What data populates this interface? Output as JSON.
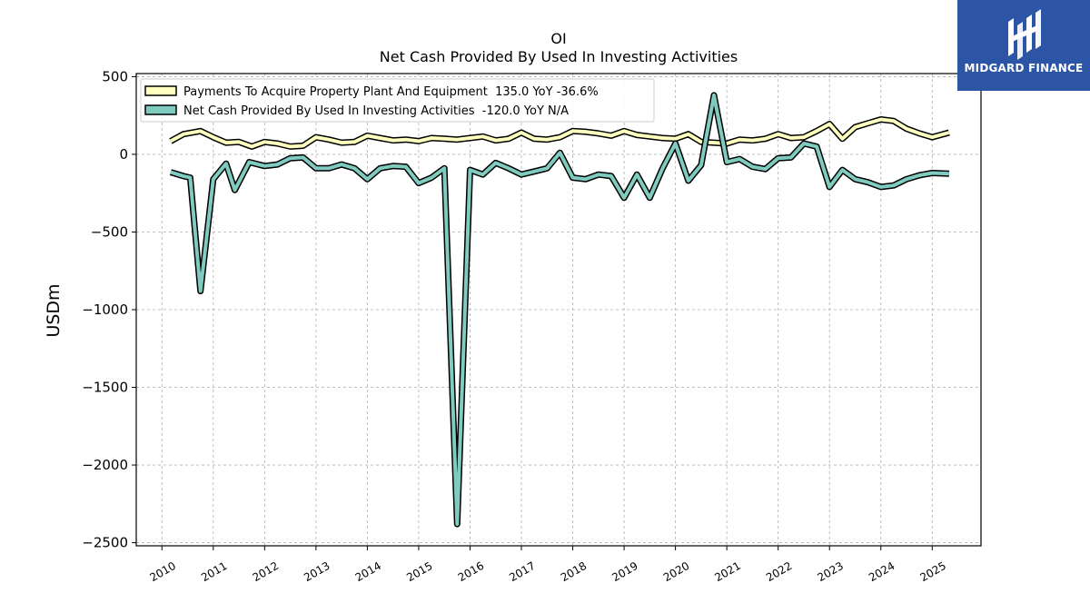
{
  "logo": {
    "text": "MIDGARD FINANCE"
  },
  "chart_data": {
    "type": "line",
    "title": "OI",
    "subtitle": "Net Cash Provided By Used In Investing Activities",
    "xlabel": "",
    "ylabel": "USDm",
    "ylim": [
      -2520,
      520
    ],
    "xlim": [
      2009.5,
      2025.95
    ],
    "yticks": [
      500,
      0,
      -500,
      -1000,
      -1500,
      -2000,
      -2500
    ],
    "ytick_labels": [
      "500",
      "0",
      "−500",
      "−1000",
      "−1500",
      "−2000",
      "−2500"
    ],
    "xticks": [
      2010,
      2011,
      2012,
      2013,
      2014,
      2015,
      2016,
      2017,
      2018,
      2019,
      2020,
      2021,
      2022,
      2023,
      2024,
      2025
    ],
    "xtick_labels": [
      "2010",
      "2011",
      "2012",
      "2013",
      "2014",
      "2015",
      "2016",
      "2017",
      "2018",
      "2019",
      "2020",
      "2021",
      "2022",
      "2023",
      "2024",
      "2025"
    ],
    "grid": true,
    "legend_position": "top-left",
    "series": [
      {
        "name": "Payments To Acquire Property Plant And Equipment",
        "legend": "Payments To Acquire Property Plant And Equipment  135.0 YoY -36.6%",
        "color": "#ffffbf",
        "x": [
          2010.17,
          2010.42,
          2010.75,
          2011.0,
          2011.25,
          2011.5,
          2011.75,
          2012.0,
          2012.25,
          2012.5,
          2012.75,
          2013.0,
          2013.25,
          2013.5,
          2013.75,
          2014.0,
          2014.25,
          2014.5,
          2014.75,
          2015.0,
          2015.25,
          2015.5,
          2015.75,
          2016.0,
          2016.25,
          2016.5,
          2016.75,
          2017.0,
          2017.25,
          2017.5,
          2017.75,
          2018.0,
          2018.25,
          2018.5,
          2018.75,
          2019.0,
          2019.25,
          2019.5,
          2019.75,
          2020.0,
          2020.25,
          2020.5,
          2020.75,
          2021.0,
          2021.25,
          2021.5,
          2021.75,
          2022.0,
          2022.25,
          2022.5,
          2022.75,
          2023.0,
          2023.25,
          2023.5,
          2023.75,
          2024.0,
          2024.25,
          2024.5,
          2024.75,
          2025.0,
          2025.33
        ],
        "y": [
          85,
          130,
          150,
          110,
          75,
          80,
          50,
          80,
          70,
          50,
          55,
          110,
          95,
          75,
          80,
          120,
          105,
          90,
          95,
          85,
          105,
          100,
          95,
          105,
          115,
          90,
          100,
          140,
          100,
          95,
          110,
          150,
          145,
          135,
          120,
          150,
          125,
          115,
          105,
          100,
          130,
          80,
          75,
          70,
          95,
          90,
          100,
          130,
          105,
          110,
          150,
          195,
          100,
          175,
          200,
          225,
          215,
          165,
          135,
          110,
          140
        ]
      },
      {
        "name": "Net Cash Provided By Used In Investing Activities",
        "legend": "Net Cash Provided By Used In Investing Activities  -120.0 YoY N/A",
        "color": "#80cbc0",
        "x": [
          2010.17,
          2010.42,
          2010.55,
          2010.75,
          2011.0,
          2011.25,
          2011.42,
          2011.7,
          2012.0,
          2012.25,
          2012.5,
          2012.75,
          2013.0,
          2013.25,
          2013.5,
          2013.75,
          2014.0,
          2014.25,
          2014.5,
          2014.75,
          2015.0,
          2015.25,
          2015.5,
          2015.75,
          2016.0,
          2016.25,
          2016.5,
          2016.75,
          2017.0,
          2017.25,
          2017.5,
          2017.75,
          2018.0,
          2018.25,
          2018.5,
          2018.75,
          2019.0,
          2019.25,
          2019.5,
          2019.75,
          2020.0,
          2020.25,
          2020.5,
          2020.75,
          2021.0,
          2021.25,
          2021.5,
          2021.75,
          2022.0,
          2022.25,
          2022.5,
          2022.75,
          2023.0,
          2023.25,
          2023.5,
          2023.75,
          2024.0,
          2024.25,
          2024.5,
          2024.75,
          2025.0,
          2025.33
        ],
        "y": [
          -115,
          -140,
          -150,
          -880,
          -160,
          -60,
          -230,
          -50,
          -75,
          -65,
          -25,
          -20,
          -90,
          -90,
          -65,
          -90,
          -160,
          -90,
          -75,
          -80,
          -185,
          -150,
          -90,
          -2380,
          -100,
          -130,
          -55,
          -90,
          -130,
          -110,
          -90,
          10,
          -150,
          -160,
          -130,
          -140,
          -280,
          -130,
          -280,
          -90,
          70,
          -170,
          -70,
          380,
          -50,
          -30,
          -80,
          -95,
          -25,
          -20,
          70,
          50,
          -210,
          -100,
          -160,
          -180,
          -210,
          -200,
          -160,
          -135,
          -120,
          -125
        ]
      }
    ]
  }
}
